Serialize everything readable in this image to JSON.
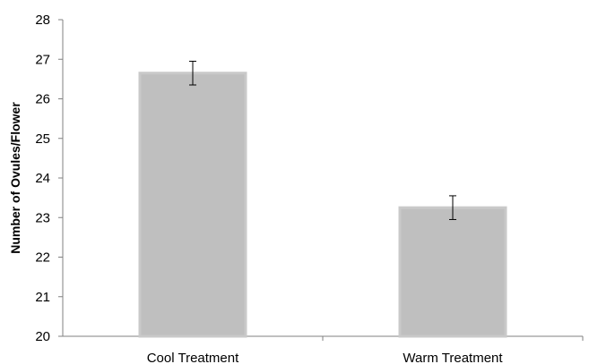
{
  "chart_data": {
    "type": "bar",
    "title": "",
    "xlabel": "",
    "ylabel": "Number of Ovules/Flower",
    "ylim": [
      20,
      28
    ],
    "yticks": [
      "20",
      "21",
      "22",
      "23",
      "24",
      "25",
      "26",
      "27",
      "28"
    ],
    "categories": [
      "Cool Treatment",
      "Warm Treatment"
    ],
    "values": [
      26.65,
      23.25
    ],
    "error": [
      0.3,
      0.3
    ],
    "grid": false,
    "legend": "none",
    "colors": {
      "bar": "#bfbfbf",
      "bar_edge": "#c9c9c9",
      "axis": "#808080",
      "error_bar": "#000000"
    }
  }
}
